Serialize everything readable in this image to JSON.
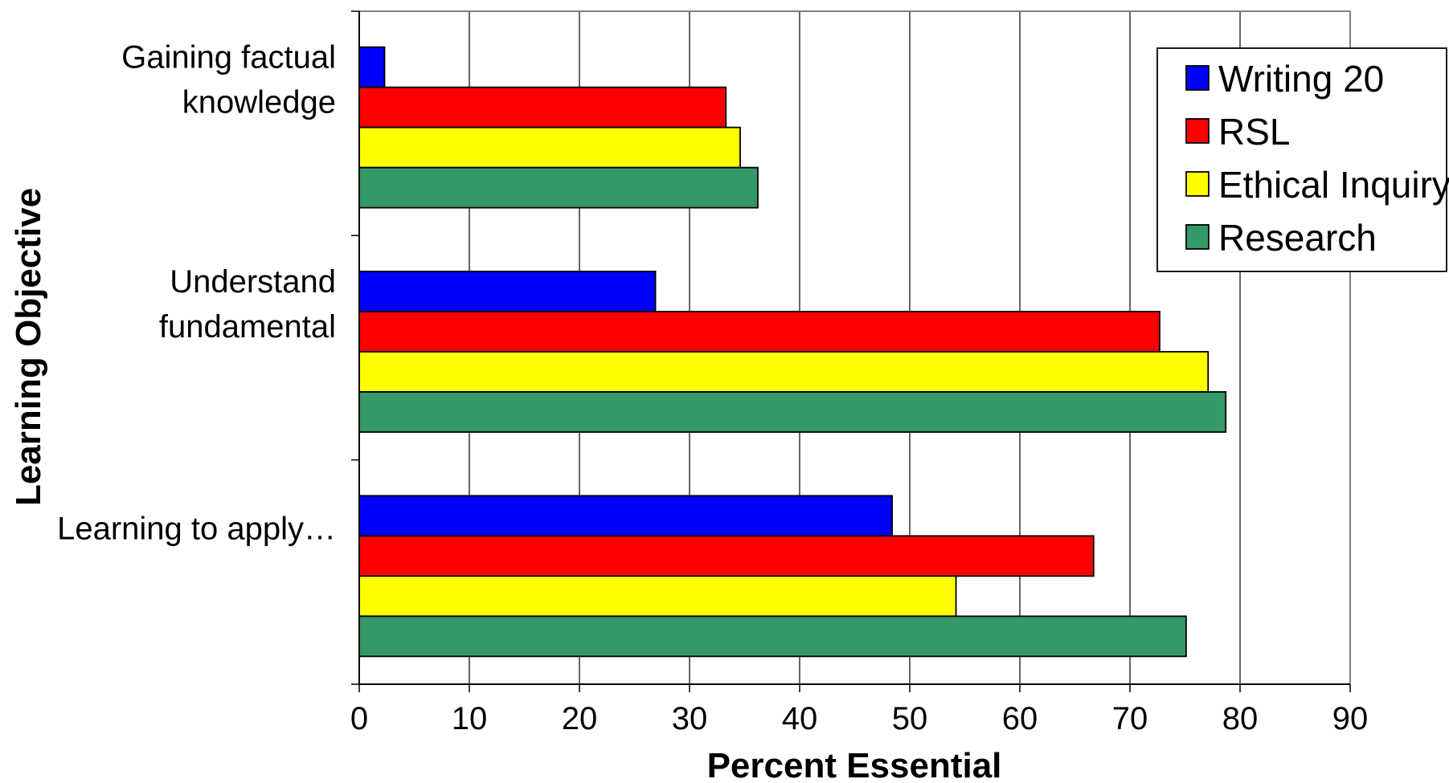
{
  "chart_data": {
    "type": "bar",
    "orientation": "horizontal",
    "categories": [
      [
        "Gaining factual",
        "knowledge"
      ],
      [
        "Understand",
        "fundamental"
      ],
      [
        "Learning to apply…"
      ]
    ],
    "series": [
      {
        "name": "Writing 20",
        "color": "#0000ff",
        "values": [
          2.3,
          26.9,
          48.4
        ]
      },
      {
        "name": "RSL",
        "color": "#ff0000",
        "values": [
          33.3,
          72.7,
          66.7
        ]
      },
      {
        "name": "Ethical Inquiry",
        "color": "#ffff00",
        "values": [
          34.6,
          77.1,
          54.2
        ]
      },
      {
        "name": "Research",
        "color": "#339966",
        "values": [
          36.2,
          78.7,
          75.1
        ]
      }
    ],
    "xlabel": "Percent Essential",
    "ylabel": "Learning Objective",
    "xlim": [
      0,
      90
    ],
    "xticks": [
      "0",
      "10",
      "20",
      "30",
      "40",
      "50",
      "60",
      "70",
      "80",
      "90"
    ],
    "grid": true,
    "legend_position": "top-right"
  }
}
